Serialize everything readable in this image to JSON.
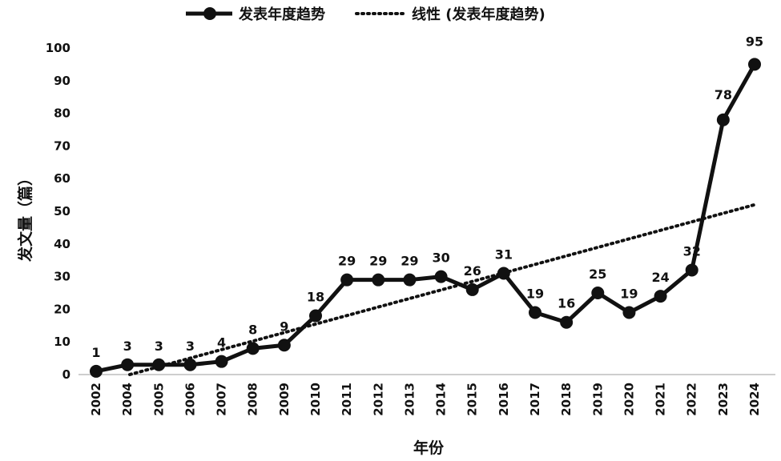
{
  "chart_data": {
    "type": "line",
    "title": "",
    "xlabel": "年份",
    "ylabel": "发文量（篇）",
    "categories": [
      "2002",
      "2004",
      "2005",
      "2006",
      "2007",
      "2008",
      "2009",
      "2010",
      "2011",
      "2012",
      "2013",
      "2014",
      "2015",
      "2016",
      "2017",
      "2018",
      "2019",
      "2020",
      "2021",
      "2022",
      "2023",
      "2024"
    ],
    "series": [
      {
        "name": "发表年度趋势",
        "values": [
          1,
          3,
          3,
          3,
          4,
          8,
          9,
          18,
          29,
          29,
          29,
          30,
          26,
          31,
          19,
          16,
          25,
          19,
          24,
          32,
          78,
          95
        ],
        "labels": [
          "1",
          "3",
          "3",
          "3",
          "4",
          "8",
          "9",
          "18",
          "29",
          "29",
          "29",
          "30",
          "26",
          "31",
          "19",
          "16",
          "25",
          "19",
          "24",
          "32",
          "78",
          "95"
        ],
        "color": "#111111",
        "style": "solid-with-markers"
      },
      {
        "name": "线性 (发表年度趋势)",
        "type": "trendline",
        "style": "dotted",
        "color": "#111111",
        "start": [
          0,
          -2.8
        ],
        "end": [
          21,
          52
        ]
      }
    ],
    "yticks": [
      "0",
      "10",
      "20",
      "30",
      "40",
      "50",
      "60",
      "70",
      "80",
      "90",
      "100"
    ],
    "ylim": [
      0,
      100
    ],
    "grid": false,
    "legend": "top"
  }
}
